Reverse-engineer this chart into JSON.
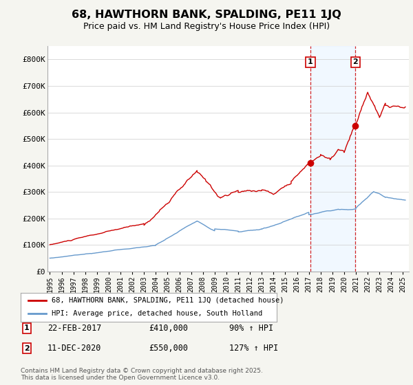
{
  "title": "68, HAWTHORN BANK, SPALDING, PE11 1JQ",
  "subtitle": "Price paid vs. HM Land Registry's House Price Index (HPI)",
  "ylabel_ticks": [
    "£0",
    "£100K",
    "£200K",
    "£300K",
    "£400K",
    "£500K",
    "£600K",
    "£700K",
    "£800K"
  ],
  "ytick_values": [
    0,
    100000,
    200000,
    300000,
    400000,
    500000,
    600000,
    700000,
    800000
  ],
  "ylim": [
    0,
    850000
  ],
  "xlim_start": 1994.8,
  "xlim_end": 2025.5,
  "sale1_date": 2017.14,
  "sale1_price": 410000,
  "sale1_label": "22-FEB-2017",
  "sale1_hpi": "90% ↑ HPI",
  "sale2_date": 2020.95,
  "sale2_price": 550000,
  "sale2_label": "11-DEC-2020",
  "sale2_hpi": "127% ↑ HPI",
  "shade_start": 2017.14,
  "shade_end": 2020.95,
  "red_color": "#cc0000",
  "blue_color": "#6699cc",
  "shade_color": "#ddeeff",
  "legend_line1": "68, HAWTHORN BANK, SPALDING, PE11 1JQ (detached house)",
  "legend_line2": "HPI: Average price, detached house, South Holland",
  "footnote": "Contains HM Land Registry data © Crown copyright and database right 2025.\nThis data is licensed under the Open Government Licence v3.0.",
  "bg_color": "#f5f5f0"
}
